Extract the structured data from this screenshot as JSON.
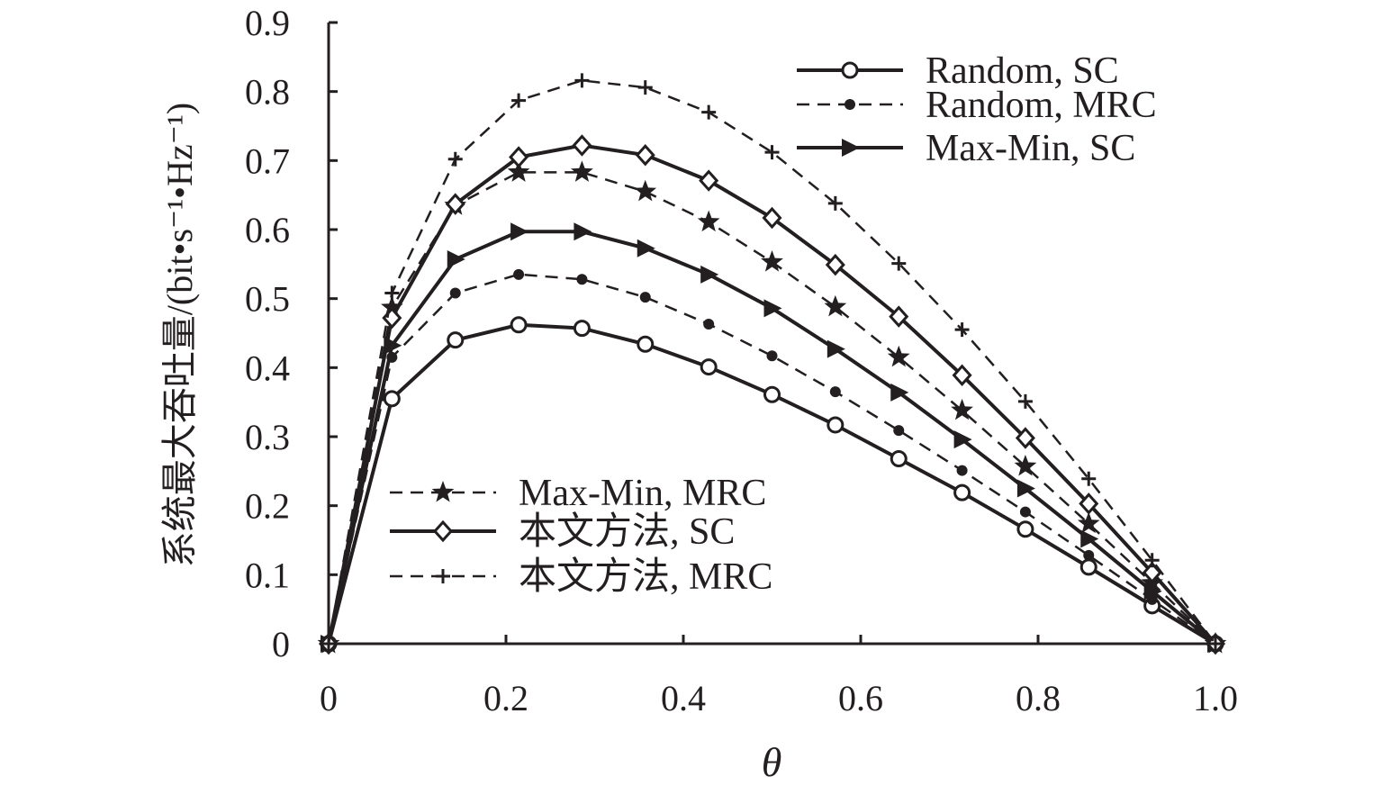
{
  "chart_data": {
    "type": "line",
    "xlabel": "θ",
    "ylabel": "系统最大吞吐量/(bit•s⁻¹•Hz⁻¹)",
    "xlim": [
      0,
      1.0
    ],
    "ylim": [
      0,
      0.9
    ],
    "x_ticks": [
      "0",
      "0.2",
      "0.4",
      "0.6",
      "0.8",
      "1.0"
    ],
    "y_ticks": [
      "0",
      "0.1",
      "0.2",
      "0.3",
      "0.4",
      "0.5",
      "0.6",
      "0.7",
      "0.8",
      "0.9"
    ],
    "grid": false,
    "legend": [
      {
        "position": "top-right",
        "entries": [
          "Random, SC",
          "Random, MRC",
          "Max-Min, SC"
        ]
      },
      {
        "position": "bottom-left",
        "entries": [
          "Max-Min, MRC",
          "本文方法, SC",
          "本文方法, MRC"
        ]
      }
    ],
    "x": [
      0,
      0.0714,
      0.1429,
      0.2143,
      0.2857,
      0.3571,
      0.4286,
      0.5,
      0.5714,
      0.6429,
      0.7143,
      0.7857,
      0.8571,
      0.9286,
      1.0
    ],
    "series": [
      {
        "name": "Random, SC",
        "line": "solid",
        "marker": "circle",
        "values": [
          0,
          0.355,
          0.44,
          0.462,
          0.457,
          0.434,
          0.401,
          0.361,
          0.317,
          0.268,
          0.219,
          0.166,
          0.111,
          0.055,
          0
        ]
      },
      {
        "name": "Random, MRC",
        "line": "dashed",
        "marker": "dot",
        "values": [
          0,
          0.415,
          0.508,
          0.535,
          0.528,
          0.502,
          0.463,
          0.417,
          0.365,
          0.309,
          0.251,
          0.191,
          0.128,
          0.064,
          0
        ]
      },
      {
        "name": "Max-Min, SC",
        "line": "solid",
        "marker": "triangle-right",
        "values": [
          0,
          0.432,
          0.557,
          0.597,
          0.597,
          0.573,
          0.535,
          0.486,
          0.427,
          0.364,
          0.296,
          0.225,
          0.152,
          0.076,
          0
        ]
      },
      {
        "name": "Max-Min, MRC",
        "line": "dashed",
        "marker": "star",
        "values": [
          0,
          0.487,
          0.635,
          0.683,
          0.683,
          0.655,
          0.611,
          0.553,
          0.488,
          0.415,
          0.338,
          0.257,
          0.174,
          0.088,
          0
        ]
      },
      {
        "name": "本文方法, SC",
        "line": "solid",
        "marker": "diamond",
        "values": [
          0,
          0.472,
          0.637,
          0.705,
          0.722,
          0.708,
          0.671,
          0.617,
          0.549,
          0.474,
          0.389,
          0.298,
          0.203,
          0.103,
          0
        ]
      },
      {
        "name": "本文方法, MRC",
        "line": "dashed",
        "marker": "plus",
        "values": [
          0,
          0.508,
          0.702,
          0.787,
          0.816,
          0.806,
          0.77,
          0.712,
          0.638,
          0.551,
          0.455,
          0.351,
          0.239,
          0.121,
          0
        ]
      }
    ]
  }
}
